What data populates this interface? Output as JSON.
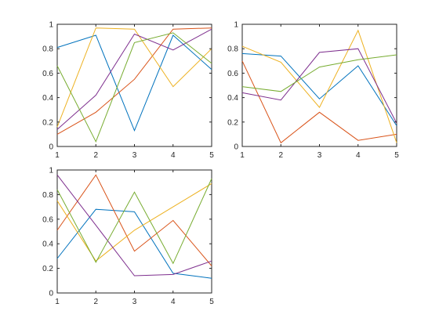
{
  "chart_data": [
    {
      "type": "line",
      "x": [
        1,
        2,
        3,
        4,
        5
      ],
      "xlim": [
        1,
        5
      ],
      "ylim": [
        0,
        1
      ],
      "xticks": [
        "1",
        "2",
        "3",
        "4",
        "5"
      ],
      "yticks": [
        "0",
        "0.2",
        "0.4",
        "0.6",
        "0.8",
        "1"
      ],
      "grid": false,
      "series": [
        {
          "color": "#0072BD",
          "values": [
            0.81,
            0.91,
            0.13,
            0.91,
            0.63
          ]
        },
        {
          "color": "#D95319",
          "values": [
            0.1,
            0.28,
            0.55,
            0.96,
            0.97
          ]
        },
        {
          "color": "#EDB120",
          "values": [
            0.16,
            0.97,
            0.96,
            0.49,
            0.8
          ]
        },
        {
          "color": "#7E2F8E",
          "values": [
            0.14,
            0.42,
            0.92,
            0.79,
            0.96
          ]
        },
        {
          "color": "#77AC30",
          "values": [
            0.66,
            0.04,
            0.85,
            0.93,
            0.68
          ]
        }
      ]
    },
    {
      "type": "line",
      "x": [
        1,
        2,
        3,
        4,
        5
      ],
      "xlim": [
        1,
        5
      ],
      "ylim": [
        0,
        1
      ],
      "xticks": [
        "1",
        "2",
        "3",
        "4",
        "5"
      ],
      "yticks": [
        "0",
        "0.2",
        "0.4",
        "0.6",
        "0.8",
        "1"
      ],
      "grid": false,
      "series": [
        {
          "color": "#0072BD",
          "values": [
            0.76,
            0.74,
            0.39,
            0.66,
            0.17
          ]
        },
        {
          "color": "#D95319",
          "values": [
            0.7,
            0.03,
            0.28,
            0.05,
            0.1
          ]
        },
        {
          "color": "#EDB120",
          "values": [
            0.82,
            0.69,
            0.32,
            0.95,
            0.03
          ]
        },
        {
          "color": "#7E2F8E",
          "values": [
            0.44,
            0.38,
            0.77,
            0.8,
            0.19
          ]
        },
        {
          "color": "#77AC30",
          "values": [
            0.49,
            0.45,
            0.65,
            0.71,
            0.75
          ]
        }
      ]
    },
    {
      "type": "line",
      "x": [
        1,
        2,
        3,
        4,
        5
      ],
      "xlim": [
        1,
        5
      ],
      "ylim": [
        0,
        1
      ],
      "xticks": [
        "1",
        "2",
        "3",
        "4",
        "5"
      ],
      "yticks": [
        "0",
        "0.2",
        "0.4",
        "0.6",
        "0.8",
        "1"
      ],
      "grid": false,
      "series": [
        {
          "color": "#0072BD",
          "values": [
            0.28,
            0.68,
            0.66,
            0.16,
            0.12
          ]
        },
        {
          "color": "#D95319",
          "values": [
            0.51,
            0.96,
            0.34,
            0.59,
            0.22
          ]
        },
        {
          "color": "#EDB120",
          "values": [
            0.75,
            0.26,
            0.51,
            0.7,
            0.89
          ]
        },
        {
          "color": "#7E2F8E",
          "values": [
            0.96,
            0.55,
            0.14,
            0.15,
            0.26
          ]
        },
        {
          "color": "#77AC30",
          "values": [
            0.84,
            0.25,
            0.82,
            0.24,
            0.93
          ]
        }
      ]
    }
  ]
}
